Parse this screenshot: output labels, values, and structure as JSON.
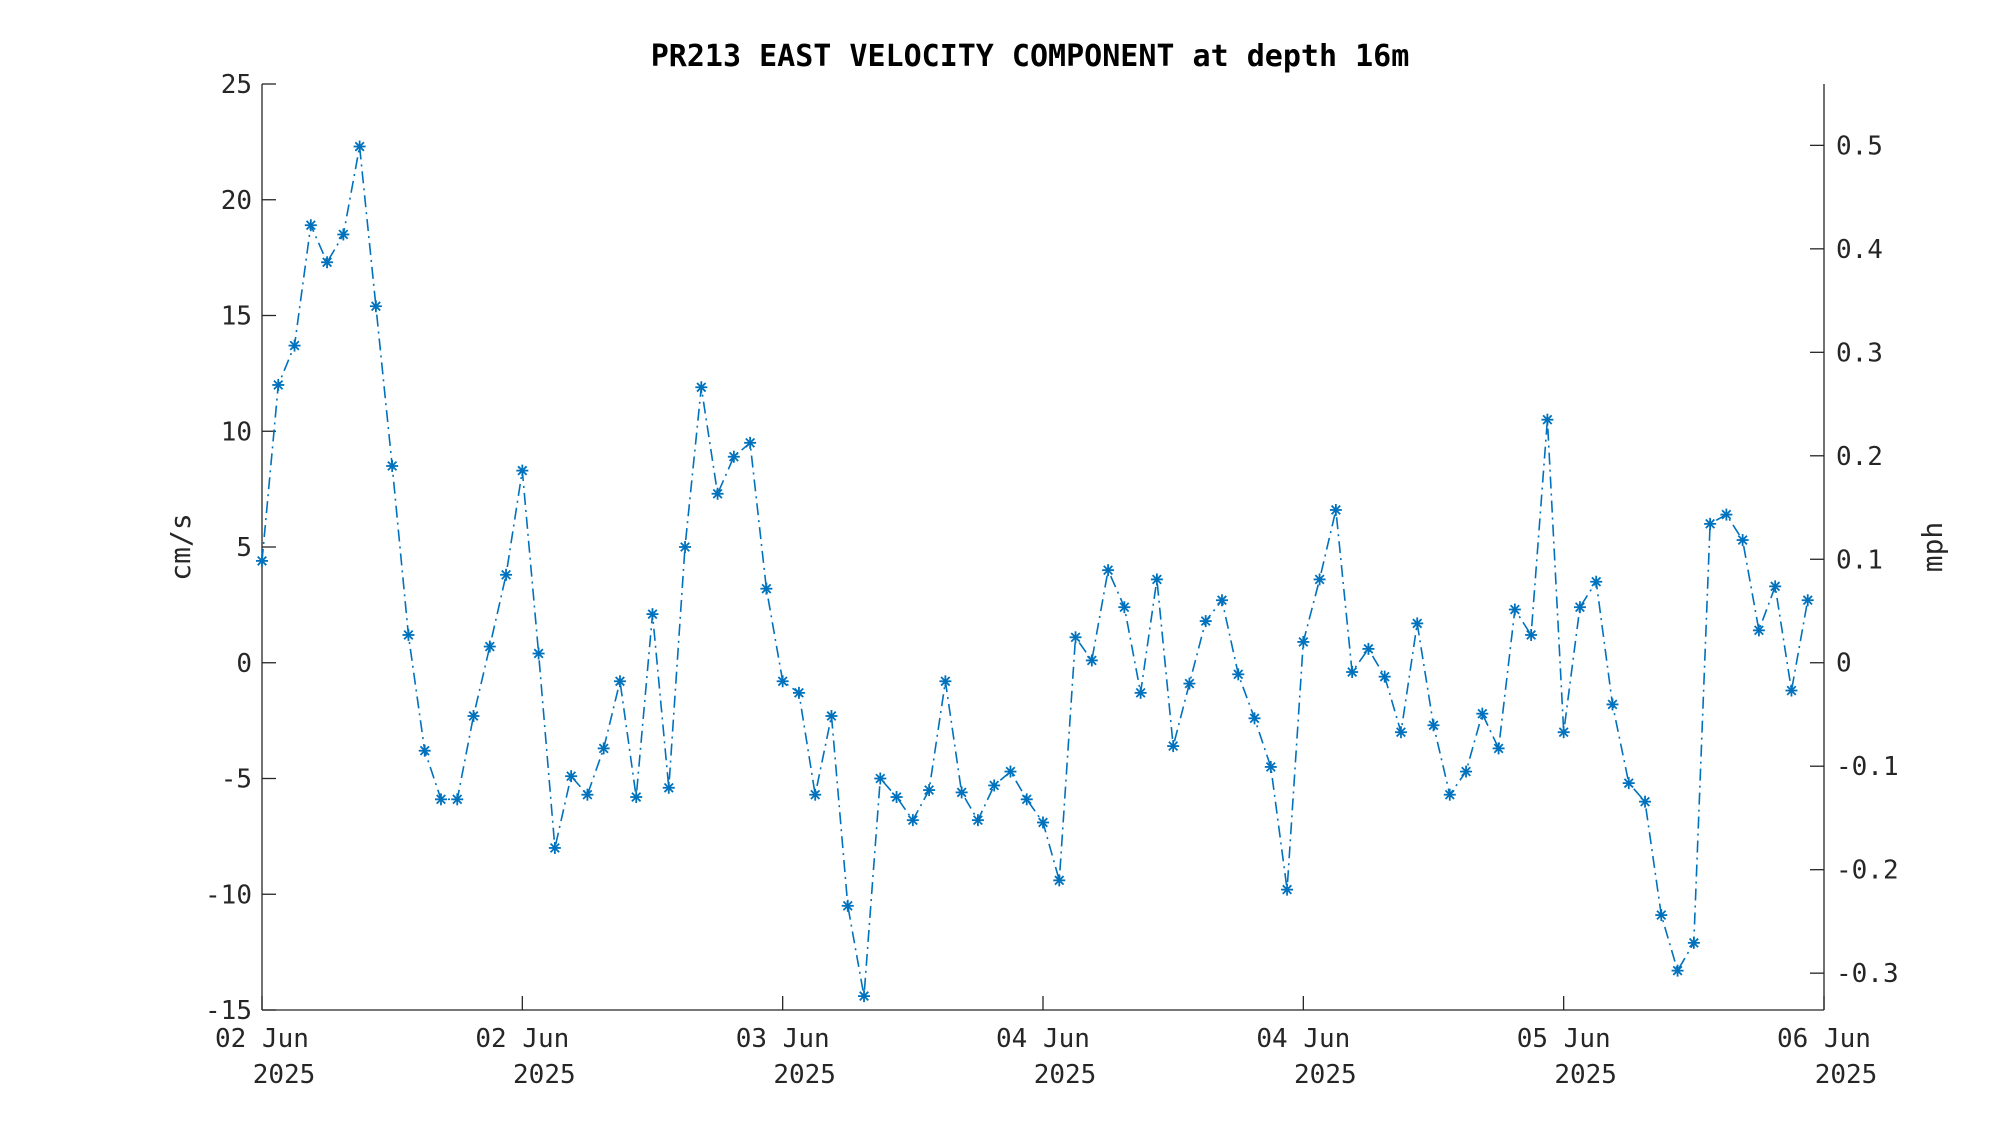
{
  "chart_data": {
    "type": "line",
    "title": "PR213 EAST VELOCITY COMPONENT at depth 16m",
    "ylabel": "cm/s",
    "y2label": "mph",
    "ylim": [
      -15,
      25
    ],
    "y2lim": [
      -0.3356,
      0.5593
    ],
    "yticks": [
      -15,
      -10,
      -5,
      0,
      5,
      10,
      15,
      20,
      25
    ],
    "y2ticks": [
      -0.3,
      -0.2,
      -0.1,
      0,
      0.1,
      0.2,
      0.3,
      0.4,
      0.5
    ],
    "y2tick_labels": [
      "-0.3",
      "-0.2",
      "-0.1",
      "0",
      "0.1",
      "0.2",
      "0.3",
      "0.4",
      "0.5"
    ],
    "xlim": [
      0,
      96
    ],
    "xticks": [
      0,
      16,
      32,
      48,
      64,
      80,
      96
    ],
    "xtick_labels": [
      [
        "02 Jun",
        "2025"
      ],
      [
        "02 Jun",
        "2025"
      ],
      [
        "03 Jun",
        "2025"
      ],
      [
        "04 Jun",
        "2025"
      ],
      [
        "04 Jun",
        "2025"
      ],
      [
        "05 Jun",
        "2025"
      ],
      [
        "06 Jun",
        "2025"
      ]
    ],
    "grid": false,
    "line_style": "dash-dot",
    "marker": "asterisk",
    "color": "#0072BD",
    "series": [
      {
        "values": [
          4.4,
          12.0,
          13.7,
          18.9,
          17.3,
          18.5,
          22.3,
          15.4,
          8.5,
          1.2,
          -3.8,
          -5.9,
          -5.9,
          -2.3,
          0.7,
          3.8,
          8.3,
          0.4,
          -8.0,
          -4.9,
          -5.7,
          -3.7,
          -0.8,
          -5.8,
          2.1,
          -5.4,
          5.0,
          11.9,
          7.3,
          8.9,
          9.5,
          3.2,
          -0.8,
          -1.3,
          -5.7,
          -2.3,
          -10.5,
          -14.4,
          -5.0,
          -5.8,
          -6.8,
          -5.5,
          -0.8,
          -5.6,
          -6.8,
          -5.3,
          -4.7,
          -5.9,
          -6.9,
          -9.4,
          1.1,
          0.1,
          4.0,
          2.4,
          -1.3,
          3.6,
          -3.6,
          -0.9,
          1.8,
          2.7,
          -0.5,
          -2.4,
          -4.5,
          -9.8,
          0.9,
          3.6,
          6.6,
          -0.4,
          0.6,
          -0.6,
          -3.0,
          1.7,
          -2.7,
          -5.7,
          -4.7,
          -2.2,
          -3.7,
          2.3,
          1.2,
          10.5,
          -3.0,
          2.4,
          3.5,
          -1.8,
          -5.2,
          -6.0,
          -10.9,
          -13.3,
          -12.1,
          6.0,
          6.4,
          5.3,
          1.4,
          3.3,
          -1.2,
          2.7
        ]
      }
    ]
  }
}
